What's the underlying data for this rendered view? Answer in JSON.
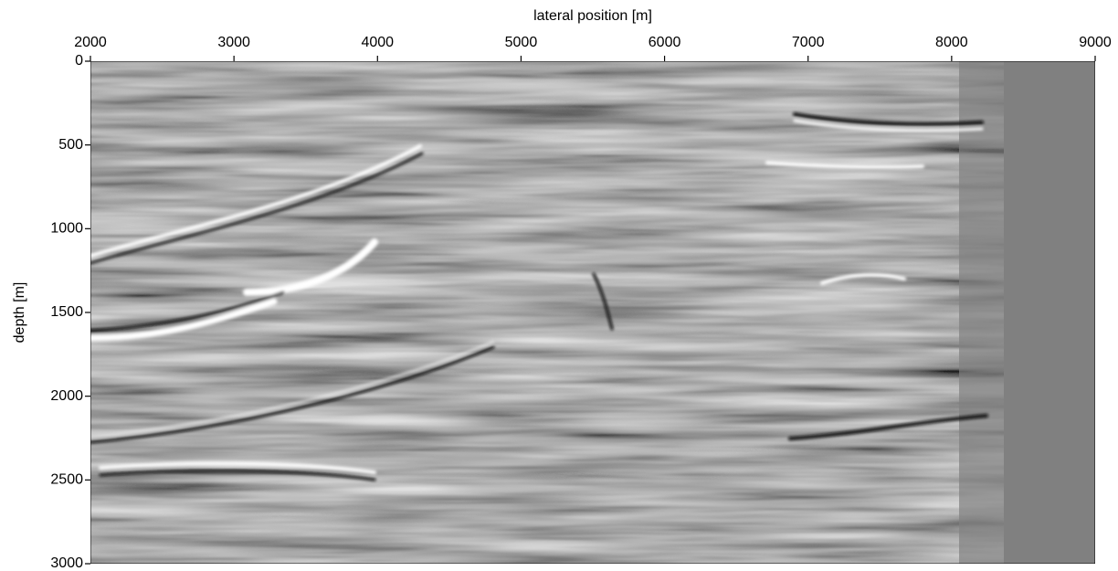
{
  "chart_data": {
    "type": "image",
    "xlabel": "lateral position [m]",
    "ylabel": "depth [m]",
    "xlim": [
      2000,
      9000
    ],
    "xticks": [
      2000,
      3000,
      4000,
      5000,
      6000,
      7000,
      8000,
      9000
    ],
    "ylim": [
      0,
      3000
    ],
    "yticks": [
      0,
      500,
      1000,
      1500,
      2000,
      2500,
      3000
    ],
    "y_inverted": true,
    "x_axis_position": "top",
    "colormap": "gray"
  }
}
